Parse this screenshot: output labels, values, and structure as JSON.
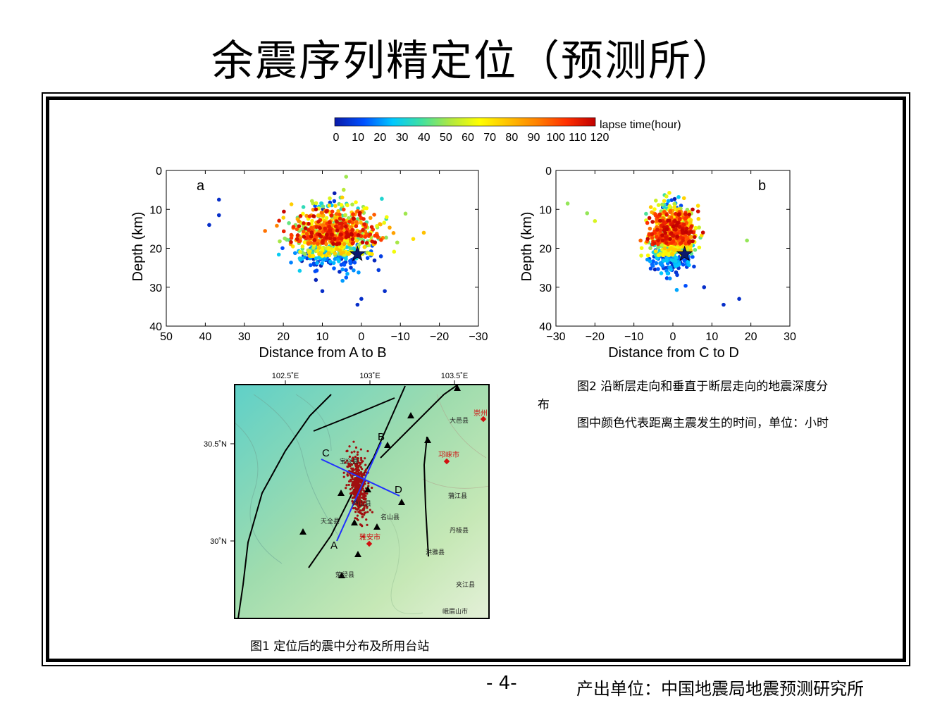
{
  "slide": {
    "title": "余震序列精定位（预测所）",
    "page_number": "- 4-",
    "producer": "产出单位：中国地震局地震预测研究所"
  },
  "colorbar": {
    "label": "lapse time(hour)",
    "ticks": [
      "0",
      "10",
      "20",
      "30",
      "40",
      "50",
      "60",
      "70",
      "80",
      "90",
      "100",
      "110",
      "120"
    ],
    "range": [
      0,
      120
    ],
    "colormap": [
      "#0a1aa8",
      "#0050ff",
      "#00c8ff",
      "#40e0a0",
      "#b0e840",
      "#ffff00",
      "#ffc000",
      "#ff8000",
      "#ff3000",
      "#c00000"
    ]
  },
  "captions": {
    "fig1": "图1 定位后的震中分布及所用台站",
    "fig2_line1": "图2  沿断层走向和垂直于断层走向的地震深度分布",
    "fig2_line2": "图中颜色代表距离主震发生的时间，单位：小时"
  },
  "chart_data": [
    {
      "type": "scatter",
      "panel_label": "a",
      "xlabel": "Distance from A to B",
      "ylabel": "Depth (km)",
      "xlim": [
        50,
        -30
      ],
      "ylim": [
        0,
        40
      ],
      "xticks": [
        "50",
        "40",
        "30",
        "20",
        "10",
        "0",
        "−10",
        "−20",
        "−30"
      ],
      "yticks": [
        "0",
        "10",
        "20",
        "30",
        "40"
      ],
      "cluster": {
        "x_center": 7,
        "x_spread": 9,
        "depth_center": 17,
        "depth_spread": 4.5,
        "count": 900
      },
      "mainshock": {
        "x": 1,
        "depth": 21.5
      },
      "outliers": [
        {
          "x": 39,
          "depth": 14,
          "t": 5
        },
        {
          "x": 36.5,
          "depth": 11.5,
          "t": 5
        },
        {
          "x": 36.5,
          "depth": 7.5,
          "t": 5
        },
        {
          "x": 10,
          "depth": 31,
          "t": 5
        },
        {
          "x": -6,
          "depth": 31,
          "t": 5
        },
        {
          "x": 0,
          "depth": 33,
          "t": 5
        },
        {
          "x": 1,
          "depth": 34.5,
          "t": 5
        },
        {
          "x": -16,
          "depth": 16,
          "t": 80
        }
      ]
    },
    {
      "type": "scatter",
      "panel_label": "b",
      "xlabel": "Distance from C to D",
      "ylabel": "Depth (km)",
      "xlim": [
        -30,
        30
      ],
      "ylim": [
        0,
        40
      ],
      "xticks": [
        "−30",
        "−20",
        "−10",
        "0",
        "10",
        "20",
        "30"
      ],
      "yticks": [
        "0",
        "10",
        "20",
        "30",
        "40"
      ],
      "cluster": {
        "x_center": 0,
        "x_spread": 4.5,
        "depth_center": 17,
        "depth_spread": 4.5,
        "count": 900
      },
      "mainshock": {
        "x": 3,
        "depth": 21.5
      },
      "outliers": [
        {
          "x": -27,
          "depth": 8.5,
          "t": 50
        },
        {
          "x": -22,
          "depth": 11,
          "t": 50
        },
        {
          "x": -20,
          "depth": 13,
          "t": 60
        },
        {
          "x": 17,
          "depth": 33,
          "t": 5
        },
        {
          "x": 13,
          "depth": 34.5,
          "t": 5
        },
        {
          "x": 19,
          "depth": 18,
          "t": 50
        },
        {
          "x": 8,
          "depth": 30,
          "t": 5
        }
      ]
    }
  ],
  "map": {
    "lon_labels": [
      "102.5˚E",
      "103˚E",
      "103.5˚E"
    ],
    "lat_labels": [
      "30.5˚N",
      "30˚N"
    ],
    "profile_points": [
      "A",
      "B",
      "C",
      "D"
    ],
    "places_black": [
      "大邑县",
      "蒲江县",
      "丹棱县",
      "洪雅县",
      "名山县",
      "天全县",
      "夹江县",
      "峨眉山市",
      "宝兴县",
      "芦山县",
      "荥经县"
    ],
    "places_red": [
      "崇州",
      "邛崃市",
      "雅安市"
    ]
  }
}
